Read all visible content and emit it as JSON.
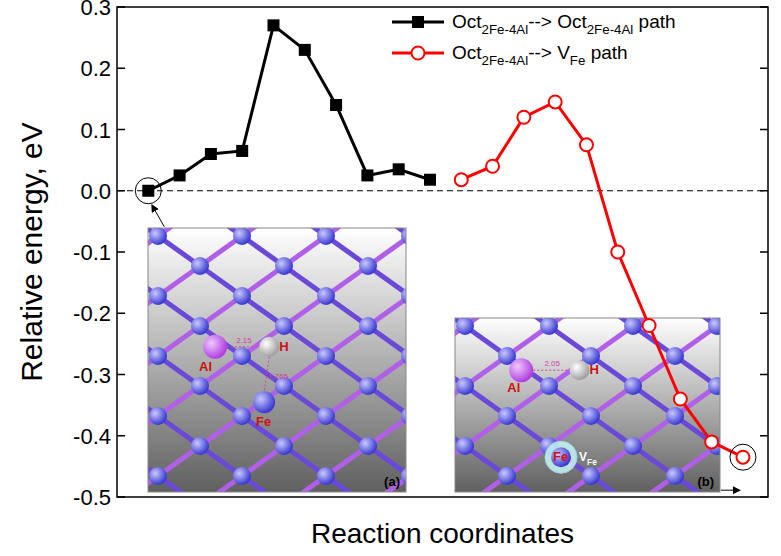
{
  "chart_data": {
    "type": "line",
    "x_label": "Reaction coordinates",
    "y_label": "Relative energy, eV",
    "xlim": [
      -1,
      19.8
    ],
    "ylim": [
      -0.5,
      0.3
    ],
    "yticks": [
      0.3,
      0.2,
      0.1,
      {
        "value": 0,
        "label": "0.0"
      },
      -0.1,
      -0.2,
      -0.3,
      -0.4,
      -0.5
    ],
    "tick_labels": "y",
    "legend": "top-right",
    "hlines": [
      0
    ],
    "series": [
      {
        "name": "Oct2Fe-4Al--> Oct2Fe-4Al path",
        "color": "#000000",
        "marker": "square",
        "line_style": "solid",
        "x": [
          0,
          1,
          2,
          3,
          4,
          5,
          6,
          7,
          8,
          9
        ],
        "values": [
          0,
          0.025,
          0.06,
          0.065,
          0.27,
          0.23,
          0.14,
          0.025,
          0.035,
          0.018
        ]
      },
      {
        "name": "Oct2Fe-4Al--> VFe path",
        "color": "#ff0000",
        "marker": "open-circle",
        "line_style": "solid",
        "x": [
          10,
          11,
          12,
          13,
          14,
          15,
          16,
          17,
          18,
          19
        ],
        "values": [
          0.018,
          0.04,
          0.12,
          0.145,
          0.075,
          -0.1,
          -0.22,
          -0.34,
          -0.41,
          -0.435
        ]
      }
    ],
    "insets": [
      {
        "label": "(a)",
        "atoms": [
          "Al",
          "H",
          "Fe"
        ],
        "distances": [
          "2.15",
          "1.765"
        ]
      },
      {
        "label": "(b)",
        "atoms": [
          "Al",
          "H",
          "Fe",
          "VFe"
        ],
        "distances": [
          "2.05"
        ]
      }
    ]
  }
}
